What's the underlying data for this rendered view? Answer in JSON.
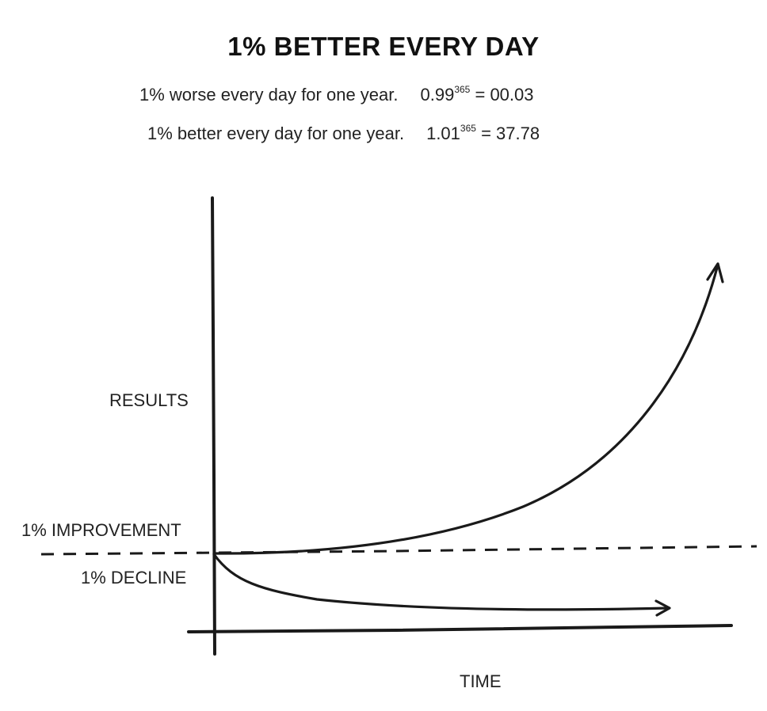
{
  "diagram": {
    "title": "1% BETTER EVERY DAY",
    "worse": {
      "text": "1% worse every day for one year.",
      "base": "0.99",
      "exponent": "365",
      "result": "= 00.03"
    },
    "better": {
      "text": "1% better every day for one year.",
      "base": "1.01",
      "exponent": "365",
      "result": "= 37.78"
    },
    "y_axis_label": "RESULTS",
    "x_axis_label": "TIME",
    "improvement_label": "1% IMPROVEMENT",
    "decline_label": "1% DECLINE",
    "line_color": "#1a1a1a"
  }
}
